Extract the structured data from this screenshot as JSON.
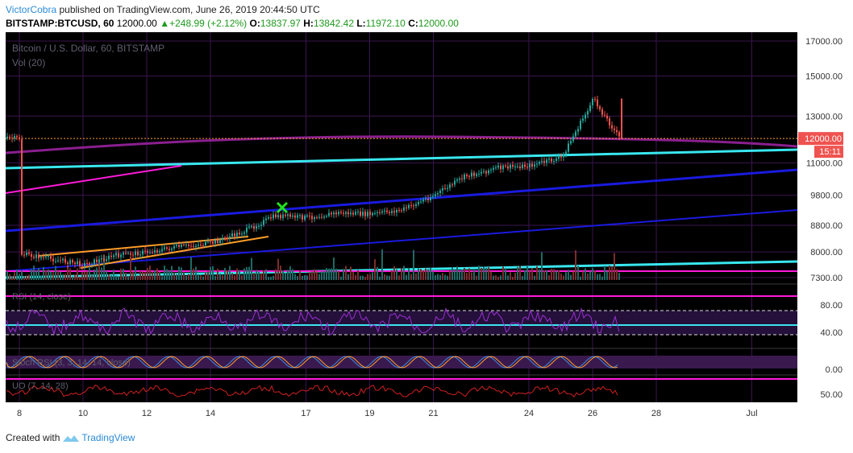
{
  "header": {
    "author": "VictorCobra",
    "published_text": " published on TradingView.com, June 26, 2019 20:44:50 UTC"
  },
  "ticker": {
    "symbol": "BITSTAMP:BTCUSD, 60",
    "last": "12000.00",
    "change": "+248.99 (+2.12%)",
    "o_label": "O:",
    "o": "13837.97",
    "h_label": "H:",
    "h": "13842.42",
    "l_label": "L:",
    "l": "11972.10",
    "c_label": "C:",
    "c": "12000.00"
  },
  "footer": {
    "created_with": "Created with",
    "brand": "TradingView"
  },
  "colors": {
    "background": "#000000",
    "grid": "#3a1450",
    "up": "#26a69a",
    "down": "#ef5350",
    "cyan": "#39e7ef",
    "blue": "#1a1adf",
    "magenta": "#ff1ad9",
    "purple": "#8a1f8f",
    "orange": "#ff9d2a",
    "price_tag": "#ef5350",
    "green_marker": "#22e022"
  },
  "chart_data": [
    {
      "type": "candlestick",
      "title": "Bitcoin / U.S. Dollar, 60, BITSTAMP",
      "subtitle": "Vol (20)",
      "y_scale": "log",
      "y_ticks": [
        "17000.00",
        "15000.00",
        "13000.00",
        "11000.00",
        "9800.00",
        "8800.00",
        "8000.00",
        "7300.00"
      ],
      "x_ticks": [
        "8",
        "10",
        "12",
        "14",
        "17",
        "19",
        "21",
        "24",
        "26",
        "28",
        "Jul"
      ],
      "last_price_label": "12000.00",
      "countdown_label": "15:11",
      "price_path": [
        [
          "2019-06-08",
          7950
        ],
        [
          "2019-06-09",
          7800
        ],
        [
          "2019-06-10",
          7650
        ],
        [
          "2019-06-11",
          7900
        ],
        [
          "2019-06-12",
          8000
        ],
        [
          "2019-06-13",
          8150
        ],
        [
          "2019-06-14",
          8250
        ],
        [
          "2019-06-15",
          8600
        ],
        [
          "2019-06-16",
          9100
        ],
        [
          "2019-06-17",
          9050
        ],
        [
          "2019-06-18",
          9200
        ],
        [
          "2019-06-19",
          9150
        ],
        [
          "2019-06-20",
          9300
        ],
        [
          "2019-06-21",
          9800
        ],
        [
          "2019-06-22",
          10500
        ],
        [
          "2019-06-23",
          10800
        ],
        [
          "2019-06-24",
          10900
        ],
        [
          "2019-06-25",
          11200
        ],
        [
          "2019-06-26",
          13800
        ],
        [
          "2019-06-26 20:00",
          12000
        ]
      ]
    },
    {
      "type": "line",
      "title": "RSI (14, close)",
      "y_ticks": [
        "80.00",
        "40.00"
      ],
      "levels": [
        70,
        50,
        30
      ]
    },
    {
      "type": "line",
      "title": "Stoch RSI (3, 3, 14, 14, close)",
      "y_ticks": [
        "0.00"
      ]
    },
    {
      "type": "line",
      "title": "UO (7, 14, 28)",
      "y_ticks": [
        "50.00"
      ]
    }
  ]
}
